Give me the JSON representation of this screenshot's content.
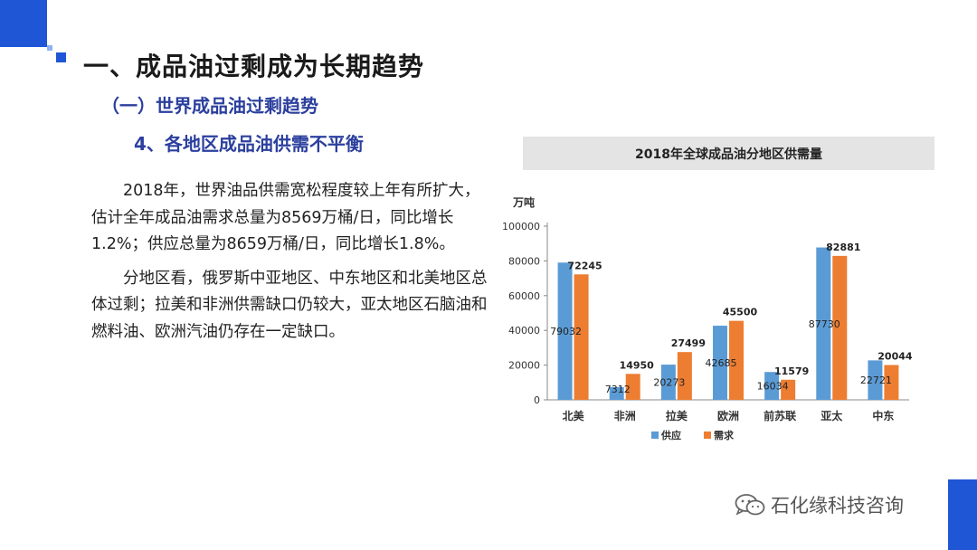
{
  "header": {
    "title": "一、成品油过剩成为长期趋势",
    "subtitle": "（一）世界成品油过剩趋势",
    "section": "4、各地区成品油供需不平衡"
  },
  "body": {
    "p1": "2018年，世界油品供需宽松程度较上年有所扩大，估计全年成品油需求总量为8569万桶/日，同比增长1.2%；供应总量为8659万桶/日，同比增长1.8%。",
    "p2": "分地区看，俄罗斯中亚地区、中东地区和北美地区总体过剩；拉美和非洲供需缺口仍较大，亚太地区石脑油和燃料油、欧洲汽油仍存在一定缺口。"
  },
  "chart_data": {
    "type": "bar",
    "title": "2018年全球成品油分地区供需量",
    "ylabel": "万吨",
    "ylim": [
      0,
      100000
    ],
    "yticks": [
      0,
      20000,
      40000,
      60000,
      80000,
      100000
    ],
    "categories": [
      "北美",
      "非洲",
      "拉美",
      "欧洲",
      "前苏联",
      "亚太",
      "中东"
    ],
    "series": [
      {
        "name": "供应",
        "values": [
          79032,
          7312,
          20273,
          42685,
          16034,
          87730,
          22721
        ],
        "color": "#5b9bd5"
      },
      {
        "name": "需求",
        "values": [
          72245,
          14950,
          27499,
          45500,
          11579,
          82881,
          20044
        ],
        "color": "#ed7d31"
      }
    ],
    "legend_position": "bottom",
    "grid": false
  },
  "watermark": {
    "text": "石化缘科技咨询",
    "icon": "wechat-icon"
  }
}
